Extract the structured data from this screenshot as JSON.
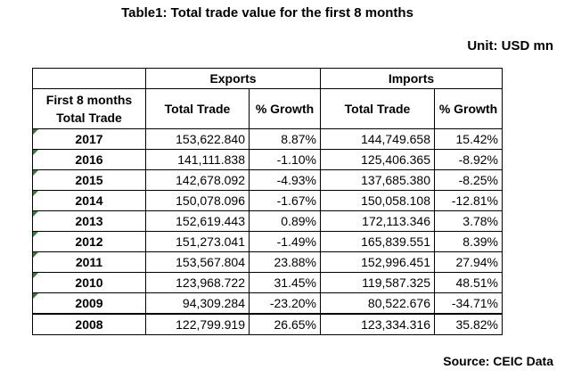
{
  "title": "Table1: Total trade value for the first 8 months",
  "unit": "Unit: USD mn",
  "source": "Source: CEIC Data",
  "headers": {
    "exports": "Exports",
    "imports": "Imports",
    "row_header_line1": "First 8 months",
    "row_header_line2": "Total Trade",
    "exp_total": "Total Trade",
    "exp_growth": "% Growth",
    "imp_total": "Total Trade",
    "imp_growth": "% Growth"
  },
  "rows": [
    {
      "year": "2017",
      "exp_total": "153,622.840",
      "exp_growth": "8.87%",
      "imp_total": "144,749.658",
      "imp_growth": "15.42%"
    },
    {
      "year": "2016",
      "exp_total": "141,111.838",
      "exp_growth": "-1.10%",
      "imp_total": "125,406.365",
      "imp_growth": "-8.92%"
    },
    {
      "year": "2015",
      "exp_total": "142,678.092",
      "exp_growth": "-4.93%",
      "imp_total": "137,685.380",
      "imp_growth": "-8.25%"
    },
    {
      "year": "2014",
      "exp_total": "150,078.096",
      "exp_growth": "-1.67%",
      "imp_total": "150,058.108",
      "imp_growth": "-12.81%"
    },
    {
      "year": "2013",
      "exp_total": "152,619.443",
      "exp_growth": "0.89%",
      "imp_total": "172,113.346",
      "imp_growth": "3.78%"
    },
    {
      "year": "2012",
      "exp_total": "151,273.041",
      "exp_growth": "-1.49%",
      "imp_total": "165,839.551",
      "imp_growth": "8.39%"
    },
    {
      "year": "2011",
      "exp_total": "153,567.804",
      "exp_growth": "23.88%",
      "imp_total": "152,996.451",
      "imp_growth": "27.94%"
    },
    {
      "year": "2010",
      "exp_total": "123,968.722",
      "exp_growth": "31.45%",
      "imp_total": "119,587.325",
      "imp_growth": "48.51%"
    },
    {
      "year": "2009",
      "exp_total": "94,309.284",
      "exp_growth": "-23.20%",
      "imp_total": "80,522.676",
      "imp_growth": "-34.71%"
    },
    {
      "year": "2008",
      "exp_total": "122,799.919",
      "exp_growth": "26.65%",
      "imp_total": "123,334.316",
      "imp_growth": "35.82%"
    }
  ]
}
